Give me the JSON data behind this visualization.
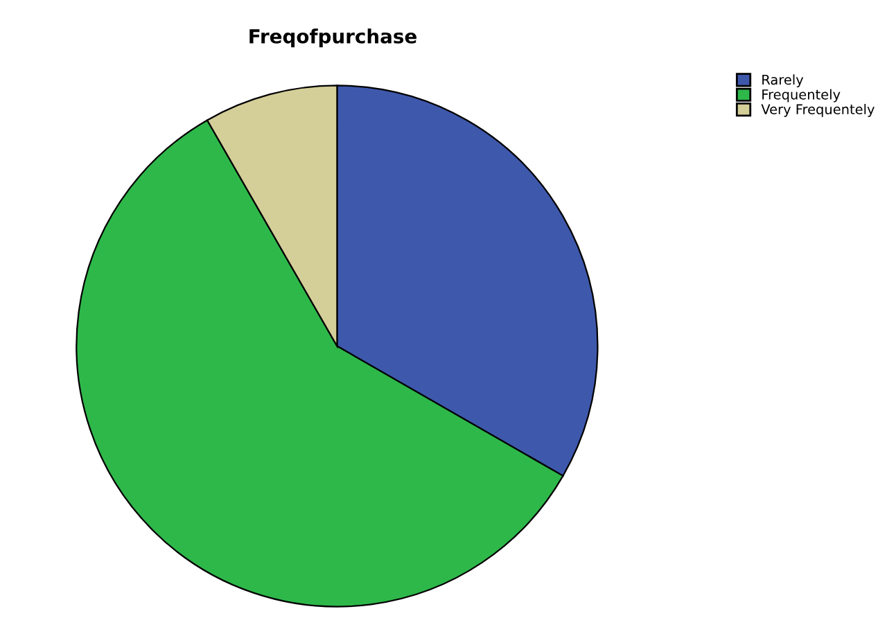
{
  "chart_data": {
    "type": "pie",
    "title": "Freqofpurchase",
    "categories": [
      "Rarely",
      "Frequentely",
      "Very Frequentely"
    ],
    "values": [
      33.3,
      58.4,
      8.3
    ],
    "colors": [
      "#3e58ac",
      "#2eb84a",
      "#d4ce98"
    ],
    "legend": "top right"
  }
}
